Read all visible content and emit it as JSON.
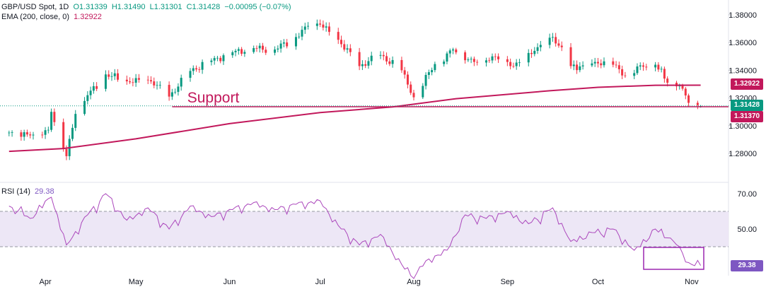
{
  "legend": {
    "symbol": "GBP/USD Spot, 1D",
    "open": "O1.31339",
    "high": "H1.31490",
    "low": "L1.31301",
    "close": "C1.31428",
    "change": "−0.00095 (−0.07%)",
    "ema_label": "EMA (200, close, 0)",
    "ema_value": "1.32922",
    "rsi_label": "RSI (14)",
    "rsi_value": "29.38"
  },
  "colors": {
    "up": "#089981",
    "down": "#f23645",
    "ema": "#c2185b",
    "support": "#c2185b",
    "rsi_line": "#ab47bc",
    "rsi_band": "#ede7f6",
    "rsi_badge": "#7e57c2"
  },
  "badges": {
    "ema": "1.32922",
    "close": "1.31428",
    "support": "1.31370",
    "rsi": "29.38"
  },
  "chart_data": [
    {
      "type": "candlestick",
      "name": "GBP/USD Spot, 1D",
      "x_labels": [
        "Apr",
        "May",
        "Jun",
        "Jul",
        "Aug",
        "Sep",
        "Oct",
        "Nov"
      ],
      "y_ticks": [
        1.28,
        1.3,
        1.32,
        1.34,
        1.36,
        1.38
      ],
      "y_tick_labels": [
        "1.28000",
        "1.30000",
        "1.32000",
        "1.34000",
        "1.36000",
        "1.38000"
      ],
      "ylim": [
        1.265,
        1.387
      ],
      "annotation": "Support",
      "support_level": 1.3137,
      "ema200": {
        "label": "EMA (200, close, 0)",
        "x": [
          "2025-03-20",
          "2025-04-07",
          "2025-05-01",
          "2025-06-01",
          "2025-07-01",
          "2025-07-25",
          "2025-08-15",
          "2025-09-15",
          "2025-10-01",
          "2025-10-20",
          "2025-11-04"
        ],
        "values": [
          1.2815,
          1.2835,
          1.2905,
          1.3015,
          1.3095,
          1.3135,
          1.3195,
          1.3252,
          1.3277,
          1.3292,
          1.32922
        ]
      },
      "close": {
        "x": [
          "2025-03-20",
          "2025-03-27",
          "2025-04-02",
          "2025-04-03",
          "2025-04-08",
          "2025-04-11",
          "2025-04-15",
          "2025-04-21",
          "2025-04-28",
          "2025-05-06",
          "2025-05-12",
          "2025-05-19",
          "2025-05-26",
          "2025-06-02",
          "2025-06-09",
          "2025-06-16",
          "2025-06-23",
          "2025-06-27",
          "2025-07-01",
          "2025-07-07",
          "2025-07-14",
          "2025-07-21",
          "2025-07-28",
          "2025-08-01",
          "2025-08-08",
          "2025-08-14",
          "2025-08-21",
          "2025-08-28",
          "2025-09-03",
          "2025-09-10",
          "2025-09-16",
          "2025-09-22",
          "2025-09-26",
          "2025-10-01",
          "2025-10-06",
          "2025-10-10",
          "2025-10-15",
          "2025-10-20",
          "2025-10-24",
          "2025-10-28",
          "2025-10-31",
          "2025-11-04"
        ],
        "values": [
          1.295,
          1.293,
          1.297,
          1.31,
          1.278,
          1.3085,
          1.322,
          1.337,
          1.332,
          1.332,
          1.321,
          1.3395,
          1.347,
          1.353,
          1.356,
          1.355,
          1.364,
          1.372,
          1.373,
          1.362,
          1.343,
          1.351,
          1.34,
          1.3205,
          1.3445,
          1.355,
          1.346,
          1.35,
          1.343,
          1.354,
          1.364,
          1.343,
          1.3435,
          1.345,
          1.344,
          1.336,
          1.3435,
          1.344,
          1.331,
          1.329,
          1.3165,
          1.31428
        ]
      }
    },
    {
      "type": "line",
      "name": "RSI (14)",
      "y_ticks": [
        50,
        70
      ],
      "y_tick_labels": [
        "50.00",
        "70.00"
      ],
      "ylim": [
        20,
        78
      ],
      "bands": [
        40,
        60
      ],
      "x": [
        "2025-03-20",
        "2025-03-27",
        "2025-04-03",
        "2025-04-08",
        "2025-04-15",
        "2025-04-21",
        "2025-04-28",
        "2025-05-05",
        "2025-05-12",
        "2025-05-19",
        "2025-05-26",
        "2025-06-02",
        "2025-06-09",
        "2025-06-16",
        "2025-06-23",
        "2025-07-01",
        "2025-07-07",
        "2025-07-14",
        "2025-07-21",
        "2025-07-28",
        "2025-08-01",
        "2025-08-05",
        "2025-08-12",
        "2025-08-18",
        "2025-08-25",
        "2025-09-01",
        "2025-09-08",
        "2025-09-16",
        "2025-09-22",
        "2025-09-29",
        "2025-10-06",
        "2025-10-13",
        "2025-10-20",
        "2025-10-24",
        "2025-10-28",
        "2025-10-31",
        "2025-11-04"
      ],
      "values": [
        63,
        56,
        68,
        41,
        58,
        70,
        55,
        62,
        50,
        63,
        57,
        61,
        65,
        61,
        64,
        66,
        52,
        41,
        47,
        30,
        22,
        32,
        38,
        58,
        56,
        60,
        53,
        62,
        43,
        48,
        50,
        38,
        50,
        45,
        40,
        31,
        29.38
      ]
    }
  ]
}
